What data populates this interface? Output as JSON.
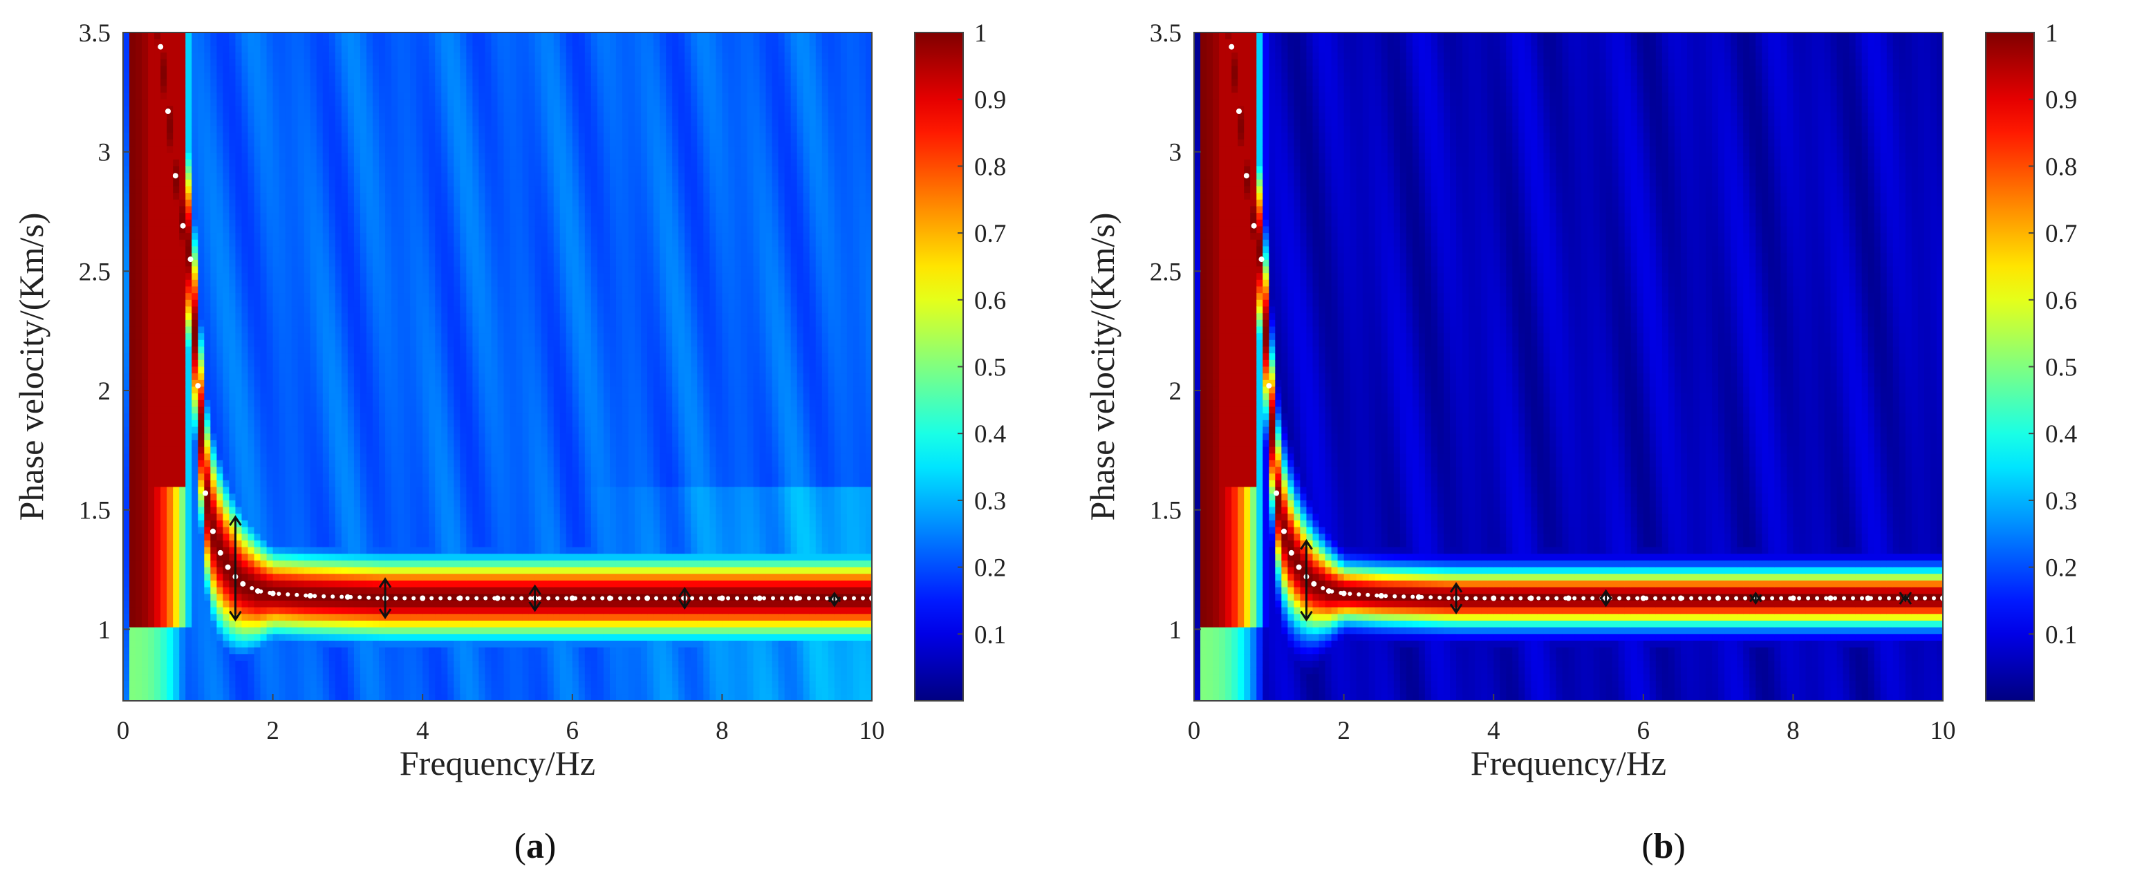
{
  "chart_data": [
    {
      "type": "heatmap",
      "panel_label": "a",
      "caption_open": "(",
      "caption_close": ")",
      "xlabel": "Frequency/Hz",
      "ylabel": "Phase velocity/(Km/s)",
      "xlim": [
        0,
        10
      ],
      "ylim": [
        0.7,
        3.5
      ],
      "xticks": [
        0,
        2,
        4,
        6,
        8,
        10
      ],
      "yticks": [
        1,
        1.5,
        2,
        2.5,
        3,
        3.5
      ],
      "colorbar_ticks": [
        0.1,
        0.2,
        0.3,
        0.4,
        0.5,
        0.6,
        0.7,
        0.8,
        0.9,
        1
      ],
      "colorbar_range": [
        0,
        1
      ],
      "colormap": "jet",
      "background_level": 0.22,
      "ridge_halfwidth": 0.17,
      "dispersion_curve": {
        "frequency": [
          0.5,
          0.6,
          0.7,
          0.8,
          0.9,
          1.0,
          1.1,
          1.2,
          1.3,
          1.4,
          1.5,
          1.6,
          1.8,
          2.0,
          2.5,
          3.0,
          3.5,
          4.0,
          4.5,
          5.0,
          5.5,
          6.0,
          6.5,
          7.0,
          7.5,
          8.0,
          8.5,
          9.0,
          9.5,
          10.0
        ],
        "velocity": [
          3.44,
          3.17,
          2.9,
          2.69,
          2.55,
          2.02,
          1.57,
          1.41,
          1.32,
          1.26,
          1.22,
          1.19,
          1.16,
          1.15,
          1.14,
          1.135,
          1.13,
          1.13,
          1.13,
          1.13,
          1.13,
          1.13,
          1.13,
          1.13,
          1.13,
          1.13,
          1.13,
          1.13,
          1.13,
          1.13
        ]
      },
      "error_bars": [
        {
          "x": 1.5,
          "low": 1.04,
          "high": 1.47
        },
        {
          "x": 3.5,
          "low": 1.05,
          "high": 1.21
        },
        {
          "x": 5.5,
          "low": 1.08,
          "high": 1.18
        },
        {
          "x": 7.5,
          "low": 1.09,
          "high": 1.17
        },
        {
          "x": 9.5,
          "low": 1.1,
          "high": 1.15
        }
      ]
    },
    {
      "type": "heatmap",
      "panel_label": "b",
      "caption_open": "(",
      "caption_close": ")",
      "xlabel": "Frequency/Hz",
      "ylabel": "Phase velocity/(Km/s)",
      "xlim": [
        0,
        10
      ],
      "ylim": [
        0.7,
        3.5
      ],
      "xticks": [
        0,
        2,
        4,
        6,
        8,
        10
      ],
      "yticks": [
        1,
        1.5,
        2,
        2.5,
        3,
        3.5
      ],
      "colorbar_ticks": [
        0.1,
        0.2,
        0.3,
        0.4,
        0.5,
        0.6,
        0.7,
        0.8,
        0.9,
        1
      ],
      "colorbar_range": [
        0,
        1
      ],
      "colormap": "jet",
      "background_level": 0.06,
      "ridge_halfwidth": 0.12,
      "dispersion_curve": {
        "frequency": [
          0.5,
          0.6,
          0.7,
          0.8,
          0.9,
          1.0,
          1.1,
          1.2,
          1.3,
          1.4,
          1.5,
          1.6,
          1.8,
          2.0,
          2.5,
          3.0,
          3.5,
          4.0,
          4.5,
          5.0,
          5.5,
          6.0,
          6.5,
          7.0,
          7.5,
          8.0,
          8.5,
          9.0,
          9.5,
          10.0
        ],
        "velocity": [
          3.44,
          3.17,
          2.9,
          2.69,
          2.55,
          2.02,
          1.57,
          1.41,
          1.32,
          1.26,
          1.22,
          1.19,
          1.16,
          1.15,
          1.14,
          1.135,
          1.13,
          1.13,
          1.13,
          1.13,
          1.13,
          1.13,
          1.13,
          1.13,
          1.13,
          1.13,
          1.13,
          1.13,
          1.13,
          1.13
        ]
      },
      "error_bars": [
        {
          "x": 1.5,
          "low": 1.04,
          "high": 1.37
        },
        {
          "x": 3.5,
          "low": 1.07,
          "high": 1.19
        },
        {
          "x": 5.5,
          "low": 1.1,
          "high": 1.16
        },
        {
          "x": 7.5,
          "low": 1.11,
          "high": 1.15
        },
        {
          "x": 9.5,
          "low": 1.12,
          "high": 1.14
        }
      ]
    }
  ]
}
